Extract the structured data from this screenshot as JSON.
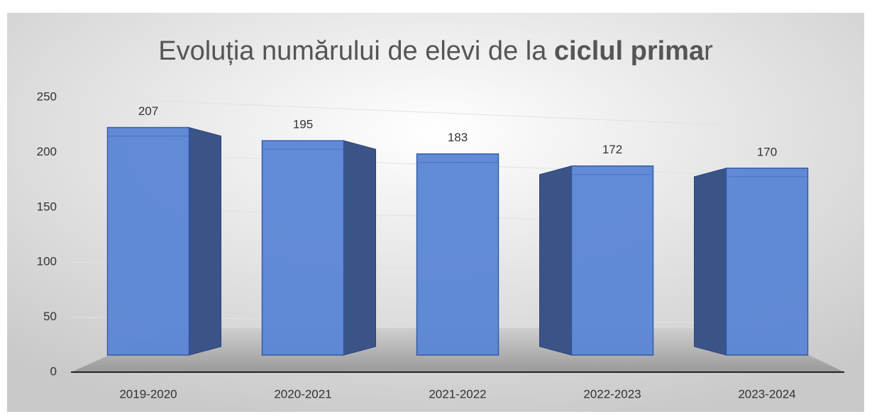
{
  "chart_data": {
    "type": "bar3d",
    "title": [
      {
        "text": "Evoluția numărului de elevi de la ",
        "bold": false
      },
      {
        "text": "ciclul prima",
        "bold": true
      },
      {
        "text": "r",
        "bold": false
      }
    ],
    "categories": [
      "2019-2020",
      "2020-2021",
      "2021-2022",
      "2022-2023",
      "2023-2024"
    ],
    "values": [
      207,
      195,
      183,
      172,
      170
    ],
    "color": "#5b86d6",
    "ylim": [
      0,
      250
    ],
    "yticks": [
      0,
      50,
      100,
      150,
      200,
      250
    ],
    "grid": true
  }
}
